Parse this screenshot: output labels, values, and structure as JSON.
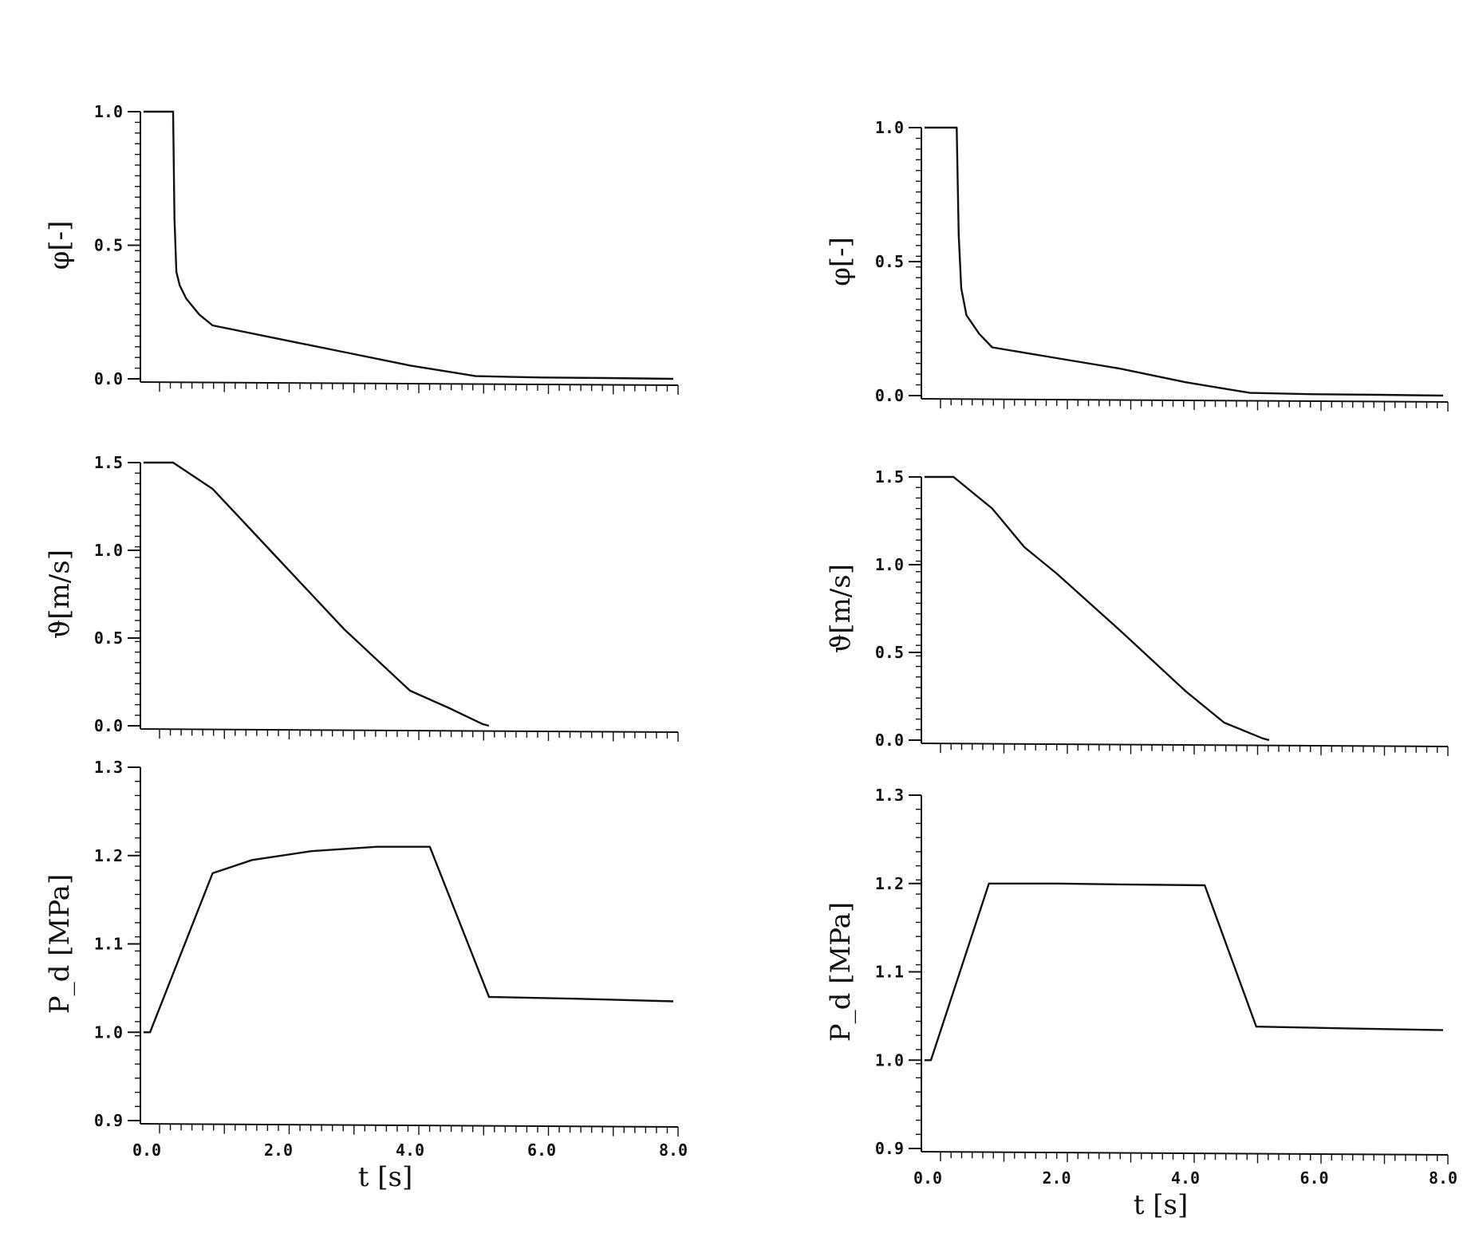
{
  "chart_data": [
    {
      "type": "line",
      "ylabel": "φ[-]",
      "xlim": [
        0,
        8
      ],
      "ylim": [
        0,
        1
      ],
      "xticks": [],
      "yticks": [
        {
          "value": 0.0,
          "label": "0.0"
        },
        {
          "value": 0.5,
          "label": "0.5"
        },
        {
          "value": 1.0,
          "label": "1.0"
        }
      ],
      "series": [
        {
          "x": [
            -0.05,
            0.1,
            0.4,
            0.42,
            0.45,
            0.5,
            0.6,
            0.8,
            1.0,
            2.0,
            3.0,
            4.0,
            4.5,
            5.0,
            6.0,
            7.0,
            8.0
          ],
          "y": [
            1.0,
            1.0,
            1.0,
            0.6,
            0.4,
            0.35,
            0.3,
            0.24,
            0.2,
            0.15,
            0.1,
            0.05,
            0.03,
            0.01,
            0.005,
            0.003,
            0.0
          ]
        }
      ]
    },
    {
      "type": "line",
      "ylabel": "ϑ[m/s]",
      "xlim": [
        0,
        8
      ],
      "ylim": [
        0,
        1.5
      ],
      "xticks": [],
      "yticks": [
        {
          "value": 0.0,
          "label": "0.0"
        },
        {
          "value": 0.5,
          "label": "0.5"
        },
        {
          "value": 1.0,
          "label": "1.0"
        },
        {
          "value": 1.5,
          "label": "1.5"
        }
      ],
      "series": [
        {
          "x": [
            -0.05,
            0.4,
            1.0,
            1.5,
            2.0,
            3.0,
            4.0,
            4.6,
            5.1,
            5.2
          ],
          "y": [
            1.5,
            1.5,
            1.35,
            1.15,
            0.95,
            0.55,
            0.2,
            0.1,
            0.01,
            0.0
          ]
        }
      ]
    },
    {
      "type": "line",
      "ylabel": "P_d [MPa]",
      "xlabel": "t [s]",
      "xlim": [
        0,
        8
      ],
      "ylim": [
        0.9,
        1.3
      ],
      "xticks": [
        {
          "value": 0,
          "label": "0.0"
        },
        {
          "value": 2,
          "label": "2.0"
        },
        {
          "value": 4,
          "label": "4.0"
        },
        {
          "value": 6,
          "label": "6.0"
        },
        {
          "value": 8,
          "label": "8.0"
        }
      ],
      "yticks": [
        {
          "value": 0.9,
          "label": "0.9"
        },
        {
          "value": 1.0,
          "label": "1.0"
        },
        {
          "value": 1.1,
          "label": "1.1"
        },
        {
          "value": 1.2,
          "label": "1.2"
        },
        {
          "value": 1.3,
          "label": "1.3"
        }
      ],
      "series": [
        {
          "x": [
            -0.05,
            0.05,
            1.0,
            1.6,
            2.5,
            3.5,
            4.3,
            5.2,
            6.5,
            8.0
          ],
          "y": [
            1.0,
            1.0,
            1.18,
            1.195,
            1.205,
            1.21,
            1.21,
            1.04,
            1.038,
            1.035
          ]
        }
      ]
    },
    {
      "type": "line",
      "ylabel": "φ[-]",
      "xlim": [
        0,
        8
      ],
      "ylim": [
        0,
        1
      ],
      "xticks": [],
      "yticks": [
        {
          "value": 0.0,
          "label": "0.0"
        },
        {
          "value": 0.5,
          "label": "0.5"
        },
        {
          "value": 1.0,
          "label": "1.0"
        }
      ],
      "series": [
        {
          "x": [
            -0.05,
            0.1,
            0.45,
            0.48,
            0.52,
            0.6,
            0.8,
            1.0,
            2.0,
            3.0,
            4.0,
            4.5,
            5.0,
            6.0,
            7.0,
            8.0
          ],
          "y": [
            1.0,
            1.0,
            1.0,
            0.6,
            0.4,
            0.3,
            0.23,
            0.18,
            0.14,
            0.1,
            0.05,
            0.03,
            0.01,
            0.005,
            0.003,
            0.0
          ]
        }
      ]
    },
    {
      "type": "line",
      "ylabel": "ϑ[m/s]",
      "xlim": [
        0,
        8
      ],
      "ylim": [
        0,
        1.5
      ],
      "xticks": [],
      "yticks": [
        {
          "value": 0.0,
          "label": "0.0"
        },
        {
          "value": 0.5,
          "label": "0.5"
        },
        {
          "value": 1.0,
          "label": "1.0"
        },
        {
          "value": 1.5,
          "label": "1.5"
        }
      ],
      "series": [
        {
          "x": [
            -0.05,
            0.4,
            1.0,
            1.5,
            2.0,
            3.0,
            4.0,
            4.6,
            5.2,
            5.3
          ],
          "y": [
            1.5,
            1.5,
            1.32,
            1.1,
            0.95,
            0.62,
            0.28,
            0.1,
            0.01,
            0.0
          ]
        }
      ]
    },
    {
      "type": "line",
      "ylabel": "P_d [MPa]",
      "xlabel": "t [s]",
      "xlim": [
        0,
        8
      ],
      "ylim": [
        0.9,
        1.3
      ],
      "xticks": [
        {
          "value": 0,
          "label": "0.0"
        },
        {
          "value": 2,
          "label": "2.0"
        },
        {
          "value": 4,
          "label": "4.0"
        },
        {
          "value": 6,
          "label": "6.0"
        },
        {
          "value": 8,
          "label": "8.0"
        }
      ],
      "yticks": [
        {
          "value": 0.9,
          "label": "0.9"
        },
        {
          "value": 1.0,
          "label": "1.0"
        },
        {
          "value": 1.1,
          "label": "1.1"
        },
        {
          "value": 1.2,
          "label": "1.2"
        },
        {
          "value": 1.3,
          "label": "1.3"
        }
      ],
      "series": [
        {
          "x": [
            -0.05,
            0.05,
            0.95,
            2.0,
            3.0,
            4.3,
            5.1,
            6.5,
            8.0
          ],
          "y": [
            1.0,
            1.0,
            1.2,
            1.2,
            1.199,
            1.198,
            1.038,
            1.036,
            1.034
          ]
        }
      ]
    }
  ]
}
